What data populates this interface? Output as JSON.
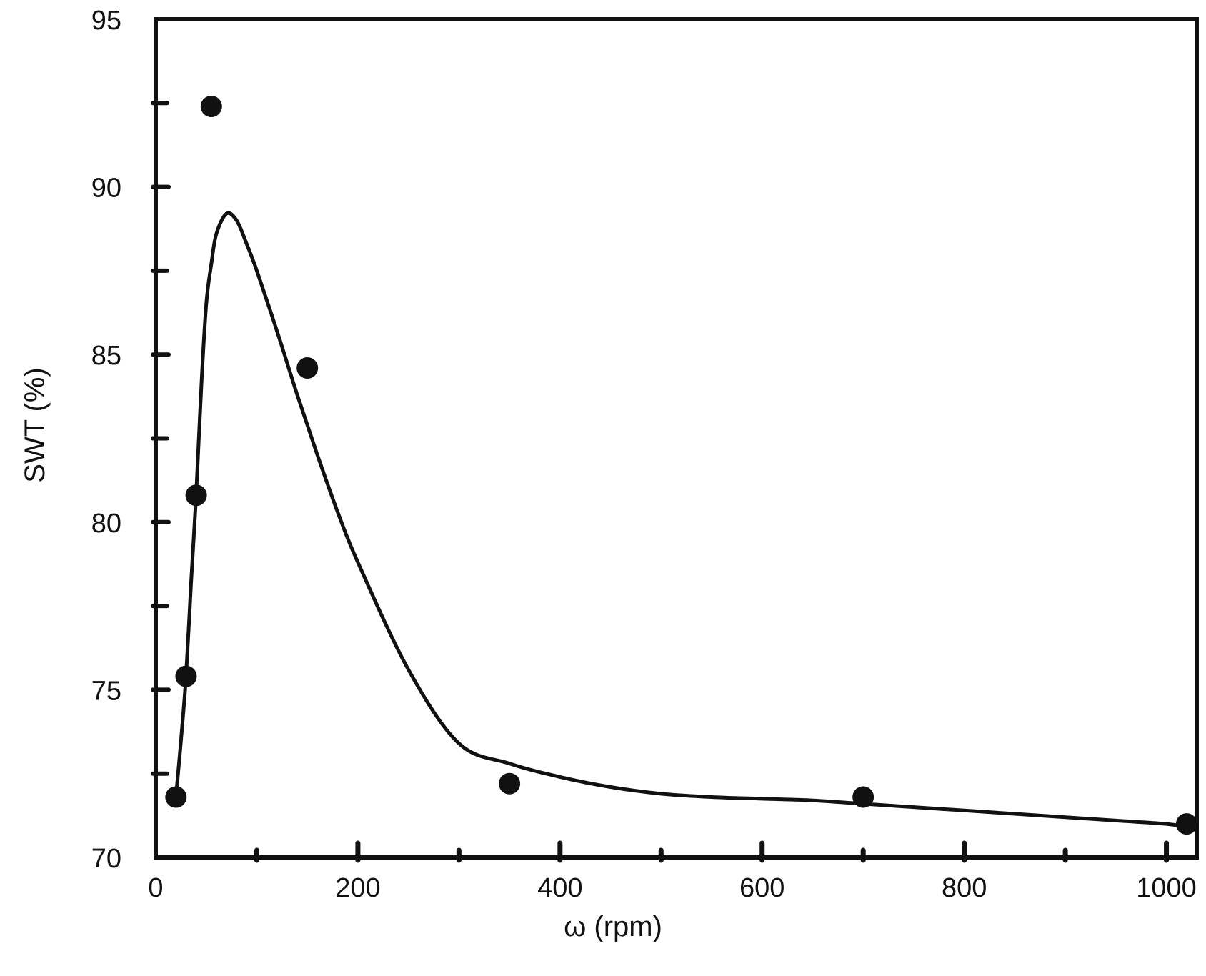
{
  "chart_data": {
    "type": "scatter",
    "title": "",
    "xlabel": "ω (rpm)",
    "ylabel": "SWT (%)",
    "xlim": [
      0,
      1030
    ],
    "ylim": [
      70,
      95
    ],
    "x_ticks": [
      0,
      200,
      400,
      600,
      800,
      1000
    ],
    "y_ticks": [
      70,
      75,
      80,
      85,
      90,
      95
    ],
    "x_tick_labels": [
      "0",
      "200",
      "400",
      "600",
      "800",
      "1000"
    ],
    "y_tick_labels": [
      "70",
      "75",
      "80",
      "85",
      "90",
      "95"
    ],
    "x_minor_ticks": [
      100,
      300,
      500,
      700,
      900
    ],
    "y_minor_ticks": [
      72.5,
      77.5,
      82.5,
      87.5,
      92.5
    ],
    "grid": false,
    "legend": "none",
    "series": [
      {
        "kind": "points",
        "x": [
          20,
          30,
          40,
          55,
          150,
          350,
          700,
          1020
        ],
        "y": [
          71.8,
          75.4,
          80.8,
          92.4,
          84.6,
          72.2,
          71.8,
          71.0
        ]
      },
      {
        "kind": "fitted-curve",
        "x": [
          20,
          25,
          30,
          35,
          40,
          45,
          50,
          55,
          60,
          70,
          80,
          90,
          100,
          120,
          140,
          160,
          180,
          200,
          250,
          300,
          350,
          400,
          450,
          500,
          550,
          600,
          650,
          700,
          750,
          800,
          850,
          900,
          950,
          1000,
          1020
        ],
        "y": [
          71.8,
          73.5,
          75.4,
          78.2,
          80.8,
          84.0,
          86.5,
          87.7,
          88.6,
          89.2,
          89.0,
          88.3,
          87.5,
          85.7,
          83.8,
          82.0,
          80.3,
          78.8,
          75.6,
          73.4,
          72.8,
          72.4,
          72.1,
          71.9,
          71.8,
          71.75,
          71.7,
          71.6,
          71.5,
          71.4,
          71.3,
          71.2,
          71.1,
          71.0,
          70.9
        ]
      }
    ],
    "colors": {
      "ink": "#111111",
      "background": "#ffffff"
    }
  }
}
